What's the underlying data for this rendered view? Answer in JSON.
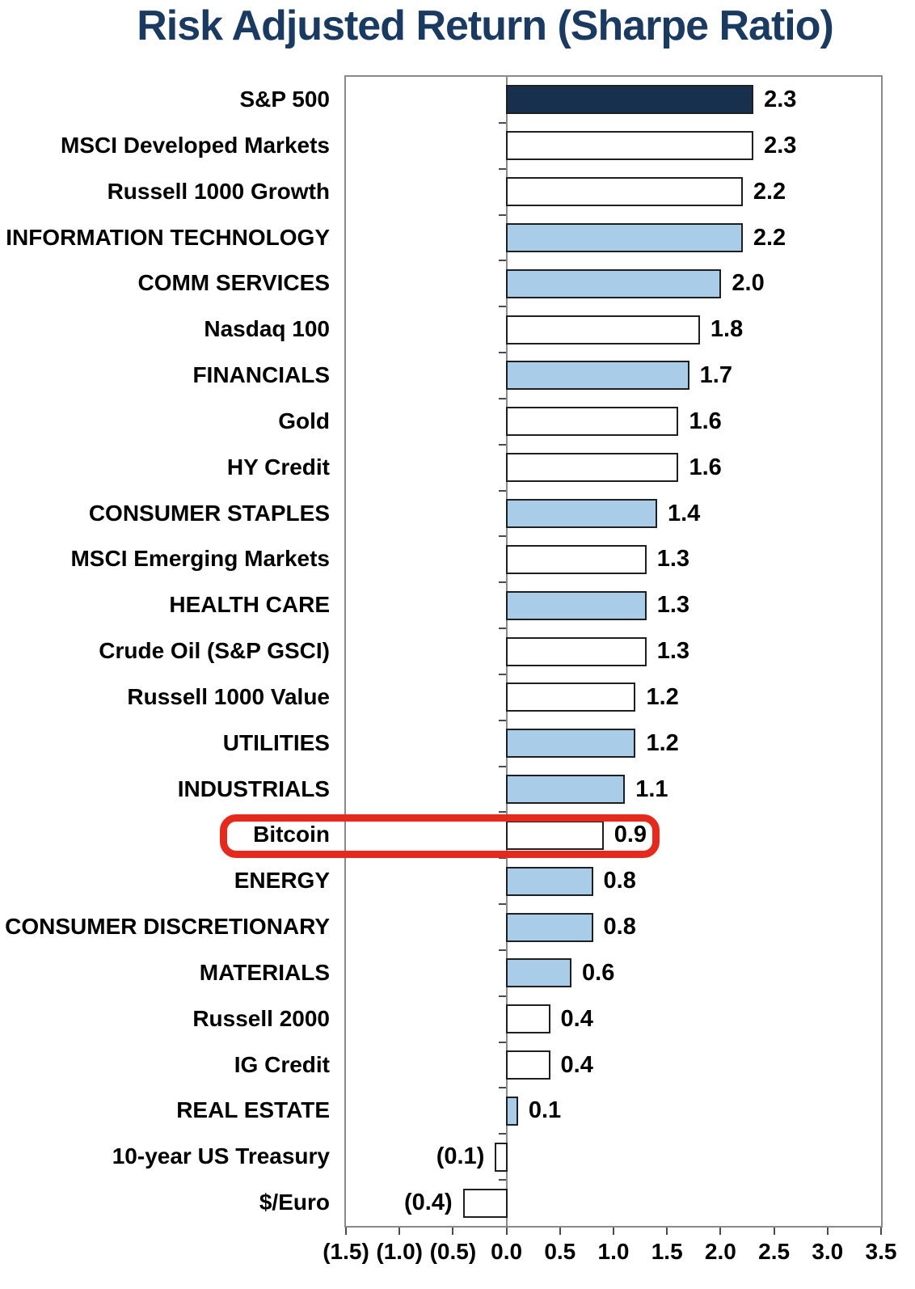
{
  "title": "Risk Adjusted Return (Sharpe Ratio)",
  "colors": {
    "title_text": "#1B3A62",
    "bar_dark": "#16304E",
    "bar_light": "#A9CDE8",
    "bar_white": "#FFFFFF",
    "bar_border": "#1F1F1F",
    "axis": "#8A8A8A",
    "tick": "#4A4A4A",
    "label_text": "#000000",
    "highlight": "#E5291C"
  },
  "chart_data": {
    "type": "bar",
    "orientation": "horizontal",
    "title": "Risk Adjusted Return (Sharpe Ratio)",
    "xlim": [
      -1.5,
      3.5
    ],
    "x_ticks": [
      -1.5,
      -1.0,
      -0.5,
      0.0,
      0.5,
      1.0,
      1.5,
      2.0,
      2.5,
      3.0,
      3.5
    ],
    "x_tick_labels": [
      "(1.5)",
      "(1.0)",
      "(0.5)",
      "0.0",
      "0.5",
      "1.0",
      "1.5",
      "2.0",
      "2.5",
      "3.0",
      "3.5"
    ],
    "grid": false,
    "legend": "none",
    "categories": [
      "S&P 500",
      "MSCI Developed Markets",
      "Russell 1000 Growth",
      "INFORMATION TECHNOLOGY",
      "COMM SERVICES",
      "Nasdaq 100",
      "FINANCIALS",
      "Gold",
      "HY Credit",
      "CONSUMER STAPLES",
      "MSCI Emerging Markets",
      "HEALTH CARE",
      "Crude Oil (S&P GSCI)",
      "Russell 1000 Value",
      "UTILITIES",
      "INDUSTRIALS",
      "Bitcoin",
      "ENERGY",
      "CONSUMER DISCRETIONARY",
      "MATERIALS",
      "Russell 2000",
      "IG Credit",
      "REAL ESTATE",
      "10-year US Treasury",
      "$/Euro"
    ],
    "values": [
      2.3,
      2.3,
      2.2,
      2.2,
      2.0,
      1.8,
      1.7,
      1.6,
      1.6,
      1.4,
      1.3,
      1.3,
      1.3,
      1.2,
      1.2,
      1.1,
      0.9,
      0.8,
      0.8,
      0.6,
      0.4,
      0.4,
      0.1,
      -0.1,
      -0.4
    ],
    "value_labels": [
      "2.3",
      "2.3",
      "2.2",
      "2.2",
      "2.0",
      "1.8",
      "1.7",
      "1.6",
      "1.6",
      "1.4",
      "1.3",
      "1.3",
      "1.3",
      "1.2",
      "1.2",
      "1.1",
      "0.9",
      "0.8",
      "0.8",
      "0.6",
      "0.4",
      "0.4",
      "0.1",
      "(0.1)",
      "(0.4)"
    ],
    "bar_styles": [
      "dark",
      "white",
      "white",
      "light",
      "light",
      "white",
      "light",
      "white",
      "white",
      "light",
      "white",
      "light",
      "white",
      "white",
      "light",
      "light",
      "white",
      "light",
      "light",
      "light",
      "white",
      "white",
      "light",
      "white",
      "white"
    ],
    "highlight": {
      "category": "Bitcoin",
      "color": "#E5291C"
    }
  }
}
